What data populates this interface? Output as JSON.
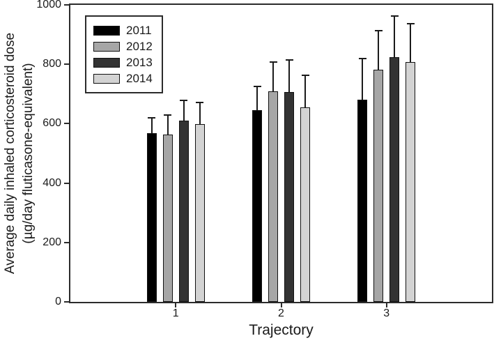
{
  "chart_data": {
    "type": "bar",
    "title": "",
    "xlabel": "Trajectory",
    "ylabel_line1": "Average daily inhaled corticosteroid dose",
    "ylabel_line2": "(µg/day fluticasone-equivalent)",
    "categories": [
      "1",
      "2",
      "3"
    ],
    "series": [
      {
        "name": "2011",
        "color": "#000000",
        "values": [
          568,
          645,
          680
        ],
        "errors": [
          55,
          82,
          142
        ]
      },
      {
        "name": "2012",
        "color": "#a6a6a6",
        "values": [
          563,
          708,
          781
        ],
        "errors": [
          68,
          101,
          134
        ]
      },
      {
        "name": "2013",
        "color": "#333333",
        "values": [
          610,
          706,
          823
        ],
        "errors": [
          70,
          110,
          141
        ]
      },
      {
        "name": "2014",
        "color": "#d3d3d3",
        "values": [
          598,
          654,
          808
        ],
        "errors": [
          75,
          111,
          132
        ]
      }
    ],
    "ylim": [
      0,
      1000
    ],
    "yticks": [
      0,
      200,
      400,
      600,
      800,
      1000
    ],
    "grid": false,
    "legend_position": "top-left",
    "axis_color": "#2b2b2b"
  }
}
